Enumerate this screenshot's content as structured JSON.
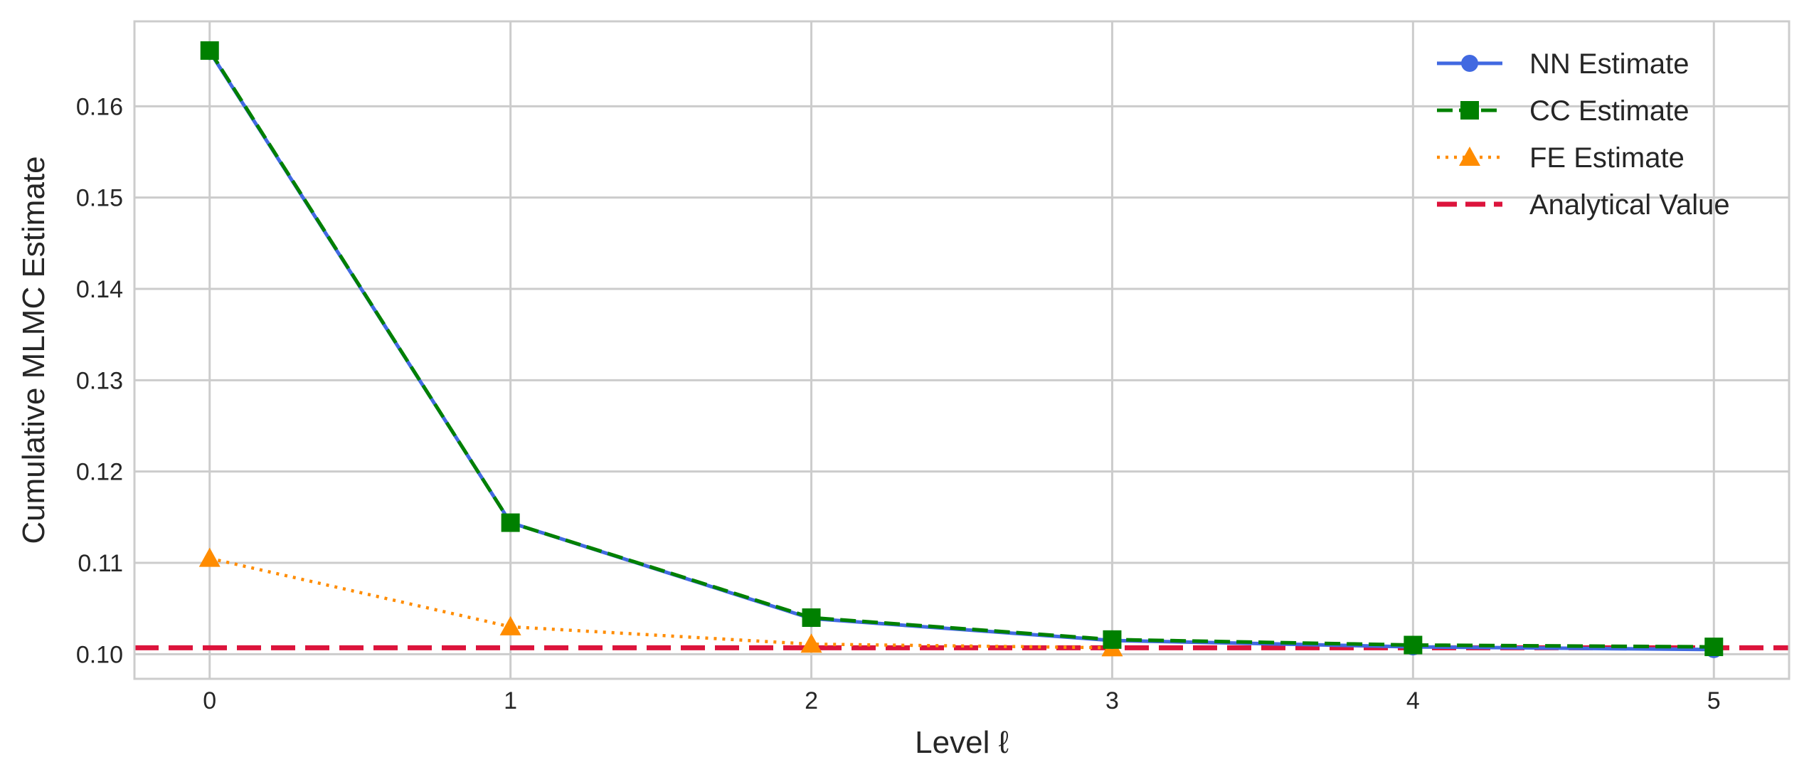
{
  "chart_data": {
    "type": "line",
    "title": "",
    "xlabel": "Level ℓ",
    "ylabel": "Cumulative MLMC Estimate",
    "x": [
      0,
      1,
      2,
      3,
      4,
      5
    ],
    "xlim": [
      -0.25,
      5.25
    ],
    "ylim": [
      0.0973,
      0.1693
    ],
    "xticks": [
      "0",
      "1",
      "2",
      "3",
      "4",
      "5"
    ],
    "yticks": [
      "0.10",
      "0.11",
      "0.12",
      "0.13",
      "0.14",
      "0.15",
      "0.16"
    ],
    "grid": true,
    "legend_position": "top-right",
    "series": [
      {
        "name": "NN Estimate",
        "values": [
          0.166,
          0.1144,
          0.1039,
          0.1015,
          0.1008,
          0.1005
        ],
        "color": "#4169e1",
        "line": "solid",
        "marker": "circle"
      },
      {
        "name": "CC Estimate",
        "values": [
          0.1661,
          0.1144,
          0.104,
          0.1016,
          0.101,
          0.1008
        ],
        "color": "#008000",
        "line": "dashed",
        "marker": "square"
      },
      {
        "name": "FE Estimate",
        "values": [
          0.1105,
          0.103,
          0.1011,
          0.1007,
          null,
          null
        ],
        "color": "#ff8c00",
        "line": "dotted",
        "marker": "triangle"
      },
      {
        "name": "Analytical Value",
        "value": 0.1007,
        "color": "#dc143c",
        "line": "dashed",
        "kind": "hline"
      }
    ]
  }
}
